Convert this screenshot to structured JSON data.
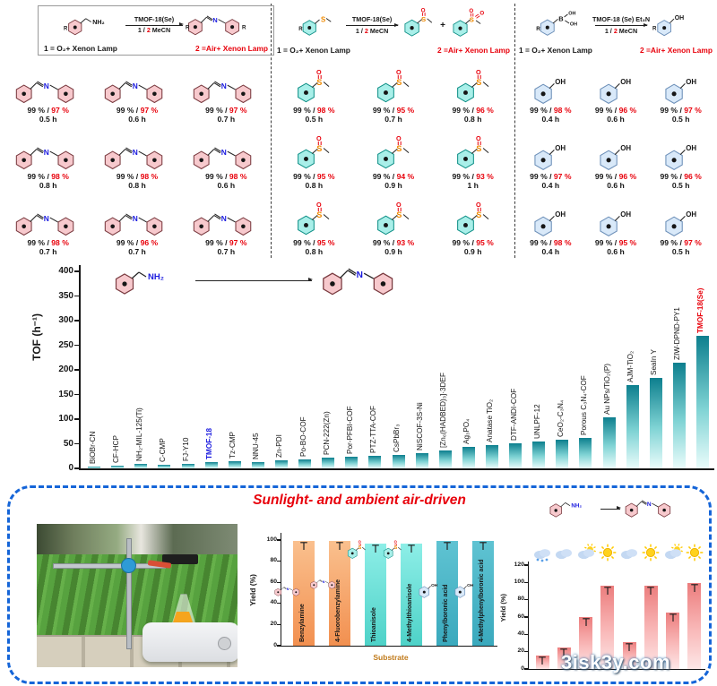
{
  "watermark": "3isk3y.com",
  "colors": {
    "accent_red": "#e8000b",
    "accent_blue": "#1a1adf",
    "teal_bar_top": "#0d7f8e",
    "pink_bar_top": "#ec7d7d",
    "box_border_blue": "#1565d8"
  },
  "top": {
    "amine": {
      "cond_top": "TMOF-18(Se)",
      "cond_1": "1 / ",
      "cond_2": "2",
      "cond_3": "  MeCN",
      "lamp1": "1 = O₂+ Xenon Lamp",
      "lamp2": "2 =Air+ Xenon Lamp",
      "r": "R",
      "nh2": "NH₂",
      "n": "N",
      "products": [
        {
          "y1": "99 %",
          "y2": "97 %",
          "t": "0.5 h"
        },
        {
          "y1": "99 %",
          "y2": "97 %",
          "t": "0.6 h"
        },
        {
          "y1": "99 %",
          "y2": "97 %",
          "t": "0.7 h"
        },
        {
          "y1": "99 %",
          "y2": "98 %",
          "t": "0.8 h"
        },
        {
          "y1": "99 %",
          "y2": "98 %",
          "t": "0.8 h"
        },
        {
          "y1": "99 %",
          "y2": "98 %",
          "t": "0.6 h"
        },
        {
          "y1": "99 %",
          "y2": "98 %",
          "t": "0.7 h"
        },
        {
          "y1": "99 %",
          "y2": "96 %",
          "t": "0.7 h"
        },
        {
          "y1": "99 %",
          "y2": "97 %",
          "t": "0.7 h"
        }
      ]
    },
    "sulfide": {
      "cond_top": "TMOF-18(Se)",
      "cond_1": "1 / ",
      "cond_2": "2",
      "cond_3": "  MeCN",
      "lamp1": "1 = O₂+ Xenon Lamp",
      "lamp2": "2 =Air+ Xenon Lamp",
      "plus": "+",
      "r": "R",
      "s": "S",
      "o": "O",
      "products": [
        {
          "y1": "99 %",
          "y2": "98 %",
          "t": "0.5 h"
        },
        {
          "y1": "99 %",
          "y2": "95 %",
          "t": "0.7 h"
        },
        {
          "y1": "99 %",
          "y2": "96 %",
          "t": "0.8 h"
        },
        {
          "y1": "99 %",
          "y2": "95 %",
          "t": "0.8 h"
        },
        {
          "y1": "99 %",
          "y2": "94 %",
          "t": "0.9 h"
        },
        {
          "y1": "99 %",
          "y2": "93 %",
          "t": "1 h"
        },
        {
          "y1": "99 %",
          "y2": "95 %",
          "t": "0.8 h"
        },
        {
          "y1": "99 %",
          "y2": "93 %",
          "t": "0.9 h"
        },
        {
          "y1": "99 %",
          "y2": "95 %",
          "t": "0.9 h"
        }
      ]
    },
    "boronic": {
      "cond_top": "TMOF-18 (Se) Et₃N",
      "cond_1": "1 / ",
      "cond_2": "2",
      "cond_3": "  MeCN",
      "lamp1": "1 = O₂+ Xenon Lamp",
      "lamp2": "2 =Air+ Xenon Lamp",
      "r": "R",
      "b": "B",
      "oh": "OH",
      "products": [
        {
          "y1": "99 %",
          "y2": "98 %",
          "t": "0.4 h"
        },
        {
          "y1": "99 %",
          "y2": "96 %",
          "t": "0.6 h"
        },
        {
          "y1": "99 %",
          "y2": "97 %",
          "t": "0.5 h"
        },
        {
          "y1": "99 %",
          "y2": "97 %",
          "t": "0.4 h"
        },
        {
          "y1": "99 %",
          "y2": "96 %",
          "t": "0.6 h"
        },
        {
          "y1": "99 %",
          "y2": "96 %",
          "t": "0.5 h"
        },
        {
          "y1": "99 %",
          "y2": "98 %",
          "t": "0.4 h"
        },
        {
          "y1": "99 %",
          "y2": "95 %",
          "t": "0.6 h"
        },
        {
          "y1": "99 %",
          "y2": "97 %",
          "t": "0.5 h"
        }
      ]
    }
  },
  "chart_data": [
    {
      "id": "tof-comparison",
      "type": "bar",
      "ylabel": "TOF (h⁻¹)",
      "ylim": [
        0,
        400
      ],
      "yticks": [
        0,
        50,
        100,
        150,
        200,
        250,
        300,
        350,
        400
      ],
      "categories": [
        "BiOBr-CN",
        "CF-HCP",
        "NH₂-MIL-125(Ti)",
        "C-CMP",
        "FJ-Y10",
        "TMOF-18",
        "Tz-CMP",
        "NNU-45",
        "Zn-PDI",
        "Po-BO-COF",
        "PCN-222(Zn)",
        "Por-PFBI-COF",
        "PTZ-TTA-COF",
        "CsPbBr₃",
        "NiSCOF-3S-Ni",
        "[Zn₆(HADBED)₃]·3DEF",
        "Ag₃PO₄",
        "Anatase TiO₂",
        "DTF-ANDI-COF",
        "UNLPF-12",
        "CeO₂-C₃N₄",
        "Porous C₃N₄-COF",
        "Au NPs/TiO₂(P)",
        "AJM-TiO₂",
        "SeaIn Y",
        "ZIW-DPND-PY1",
        "TMOF-18(Se)"
      ],
      "values": [
        3,
        5,
        9,
        8,
        9,
        12,
        14,
        12,
        16,
        19,
        21,
        24,
        26,
        28,
        31,
        37,
        43,
        48,
        51,
        55,
        58,
        62,
        103,
        170,
        183,
        215,
        270
      ],
      "label_colors": {
        "5": "#1a1adf",
        "26": "#e8000b"
      },
      "scheme": {
        "nh2": "NH₂",
        "n": "N"
      }
    },
    {
      "id": "substrate-yields",
      "type": "bar",
      "ylabel": "Yield (%)",
      "xlabel": "Substrate",
      "ylim": [
        0,
        100
      ],
      "yticks": [
        0,
        20,
        40,
        60,
        80,
        100
      ],
      "categories": [
        "Benzylamine",
        "4-Fluorobenzylamine",
        "Thioanisole",
        "4-Methylthioanisole",
        "Phenylboronic acid",
        "4-Methylphenylboronic acid"
      ],
      "values": [
        99,
        99,
        97,
        97,
        99,
        99
      ],
      "glyph_types": [
        "imine",
        "imine",
        "sulfoxide",
        "sulfoxide",
        "phenol",
        "phenol"
      ]
    },
    {
      "id": "weather-yields",
      "type": "bar",
      "ylabel": "Yield (%)",
      "ylim": [
        0,
        120
      ],
      "yticks": [
        0,
        20,
        40,
        60,
        80,
        100,
        120
      ],
      "values": [
        16,
        25,
        60,
        96,
        31,
        96,
        65,
        99
      ],
      "weather": [
        "rain",
        "cloud",
        "cloud-sun",
        "sun",
        "cloud",
        "sun",
        "cloud-sun",
        "sun"
      ],
      "scheme": {
        "nh2": "NH₂",
        "n": "N"
      }
    }
  ],
  "bottom": {
    "title": "Sunlight- and ambient air-driven"
  }
}
